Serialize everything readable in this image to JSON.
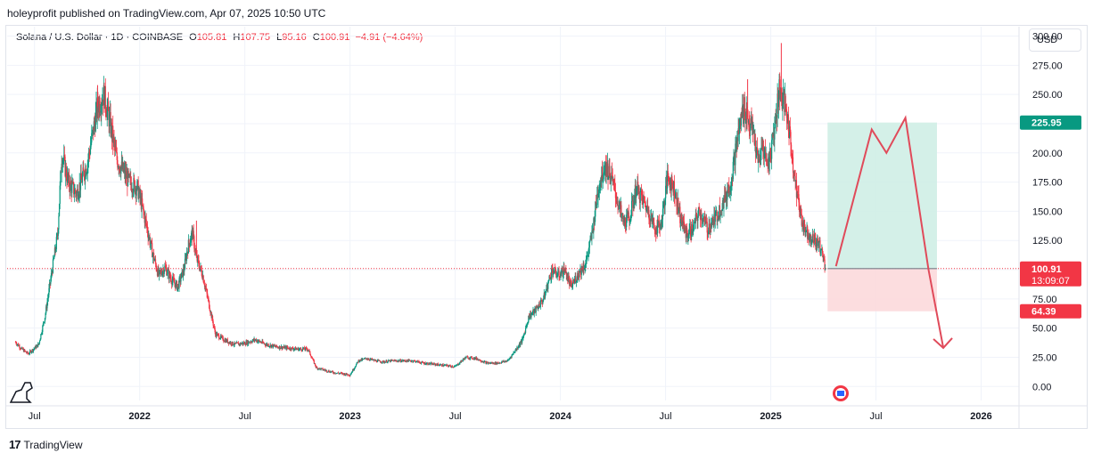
{
  "header": {
    "published": "holeyprofit published on TradingView.com, Apr 07, 2025 10:50 UTC"
  },
  "legend": {
    "symbol": "Solana / U.S. Dollar · 1D · COINBASE",
    "o_label": "O",
    "o_value": "105.81",
    "h_label": "H",
    "h_value": "107.75",
    "l_label": "L",
    "l_value": "95.16",
    "c_label": "C",
    "c_value": "100.91",
    "change": "−4.91 (−4.64%)"
  },
  "currency_button": "USD",
  "footer": {
    "brand": "TradingView",
    "mark": "17"
  },
  "colors": {
    "up": "#089981",
    "down": "#f23645",
    "grid": "#f0f3fa",
    "target_zone": "#cfeee6",
    "stop_zone": "#fcd9dc",
    "projection": "#e04a5a"
  },
  "chart_data": {
    "type": "candlestick",
    "title": "Solana / U.S. Dollar · 1D · COINBASE",
    "y_ticks": [
      0,
      25,
      50,
      75,
      100,
      125,
      150,
      175,
      200,
      225,
      250,
      275,
      300
    ],
    "y_tick_labels": [
      "0.00",
      "25.00",
      "50.00",
      "75.00",
      "100.00",
      "125.00",
      "150.00",
      "175.00",
      "200.00",
      "225.00",
      "250.00",
      "275.00",
      "300.00"
    ],
    "ylim": [
      -12,
      308
    ],
    "x_ticks": [
      2021.5,
      2022.0,
      2022.5,
      2023.0,
      2023.5,
      2024.0,
      2024.5,
      2025.0,
      2025.5,
      2026.0
    ],
    "x_tick_labels": [
      "Jul",
      "2022",
      "Jul",
      "2023",
      "Jul",
      "2024",
      "Jul",
      "2025",
      "Jul",
      "2026"
    ],
    "x_bold": [
      "2022",
      "2023",
      "2024",
      "2025",
      "2026"
    ],
    "xlim": [
      2021.37,
      2026.18
    ],
    "price_path": [
      [
        2021.41,
        38
      ],
      [
        2021.44,
        32
      ],
      [
        2021.47,
        28
      ],
      [
        2021.52,
        36
      ],
      [
        2021.55,
        60
      ],
      [
        2021.58,
        95
      ],
      [
        2021.61,
        130
      ],
      [
        2021.63,
        200
      ],
      [
        2021.66,
        175
      ],
      [
        2021.7,
        165
      ],
      [
        2021.75,
        190
      ],
      [
        2021.78,
        220
      ],
      [
        2021.8,
        240
      ],
      [
        2021.83,
        250
      ],
      [
        2021.86,
        225
      ],
      [
        2021.89,
        195
      ],
      [
        2021.92,
        185
      ],
      [
        2021.95,
        175
      ],
      [
        2021.99,
        170
      ],
      [
        2022.03,
        140
      ],
      [
        2022.06,
        115
      ],
      [
        2022.09,
        95
      ],
      [
        2022.12,
        102
      ],
      [
        2022.15,
        92
      ],
      [
        2022.18,
        85
      ],
      [
        2022.21,
        100
      ],
      [
        2022.23,
        120
      ],
      [
        2022.25,
        132
      ],
      [
        2022.27,
        110
      ],
      [
        2022.3,
        95
      ],
      [
        2022.33,
        70
      ],
      [
        2022.36,
        45
      ],
      [
        2022.4,
        40
      ],
      [
        2022.45,
        36
      ],
      [
        2022.5,
        37
      ],
      [
        2022.55,
        40
      ],
      [
        2022.6,
        36
      ],
      [
        2022.65,
        34
      ],
      [
        2022.7,
        33
      ],
      [
        2022.75,
        32
      ],
      [
        2022.8,
        32
      ],
      [
        2022.84,
        16
      ],
      [
        2022.88,
        14
      ],
      [
        2022.92,
        12
      ],
      [
        2022.96,
        11
      ],
      [
        2023.0,
        10
      ],
      [
        2023.04,
        22
      ],
      [
        2023.08,
        24
      ],
      [
        2023.12,
        22
      ],
      [
        2023.16,
        21
      ],
      [
        2023.2,
        22
      ],
      [
        2023.25,
        22
      ],
      [
        2023.3,
        22
      ],
      [
        2023.35,
        20
      ],
      [
        2023.4,
        19
      ],
      [
        2023.45,
        18
      ],
      [
        2023.5,
        17
      ],
      [
        2023.55,
        25
      ],
      [
        2023.6,
        24
      ],
      [
        2023.65,
        20
      ],
      [
        2023.7,
        20
      ],
      [
        2023.75,
        22
      ],
      [
        2023.79,
        32
      ],
      [
        2023.82,
        40
      ],
      [
        2023.85,
        60
      ],
      [
        2023.88,
        65
      ],
      [
        2023.92,
        75
      ],
      [
        2023.96,
        100
      ],
      [
        2023.99,
        95
      ],
      [
        2024.02,
        100
      ],
      [
        2024.05,
        85
      ],
      [
        2024.09,
        98
      ],
      [
        2024.12,
        105
      ],
      [
        2024.15,
        130
      ],
      [
        2024.18,
        170
      ],
      [
        2024.21,
        190
      ],
      [
        2024.24,
        180
      ],
      [
        2024.27,
        160
      ],
      [
        2024.3,
        140
      ],
      [
        2024.33,
        145
      ],
      [
        2024.36,
        170
      ],
      [
        2024.39,
        160
      ],
      [
        2024.42,
        150
      ],
      [
        2024.45,
        135
      ],
      [
        2024.48,
        140
      ],
      [
        2024.51,
        180
      ],
      [
        2024.54,
        170
      ],
      [
        2024.57,
        145
      ],
      [
        2024.6,
        130
      ],
      [
        2024.63,
        135
      ],
      [
        2024.66,
        150
      ],
      [
        2024.7,
        135
      ],
      [
        2024.74,
        145
      ],
      [
        2024.78,
        160
      ],
      [
        2024.81,
        175
      ],
      [
        2024.84,
        210
      ],
      [
        2024.87,
        240
      ],
      [
        2024.89,
        230
      ],
      [
        2024.92,
        215
      ],
      [
        2024.94,
        190
      ],
      [
        2024.96,
        205
      ],
      [
        2024.99,
        190
      ],
      [
        2025.02,
        225
      ],
      [
        2025.04,
        255
      ],
      [
        2025.06,
        245
      ],
      [
        2025.08,
        230
      ],
      [
        2025.1,
        200
      ],
      [
        2025.12,
        170
      ],
      [
        2025.15,
        140
      ],
      [
        2025.18,
        130
      ],
      [
        2025.21,
        125
      ],
      [
        2025.24,
        118
      ],
      [
        2025.26,
        100.91
      ]
    ],
    "spikes_high": [
      [
        2021.8,
        258
      ],
      [
        2022.27,
        142
      ],
      [
        2024.89,
        263
      ],
      [
        2025.05,
        294
      ]
    ],
    "last_price": {
      "value": 100.91,
      "label": "100.91",
      "countdown": "13:09:07"
    },
    "position": {
      "x_start": 2025.27,
      "x_end": 2025.79,
      "entry": 100.91,
      "target": 225.95,
      "stop": 64.39,
      "target_label": "225.95",
      "stop_label": "64.39"
    },
    "projection": [
      [
        2025.31,
        103
      ],
      [
        2025.48,
        220
      ],
      [
        2025.55,
        200
      ],
      [
        2025.64,
        230
      ],
      [
        2025.75,
        100
      ],
      [
        2025.82,
        33
      ]
    ]
  }
}
